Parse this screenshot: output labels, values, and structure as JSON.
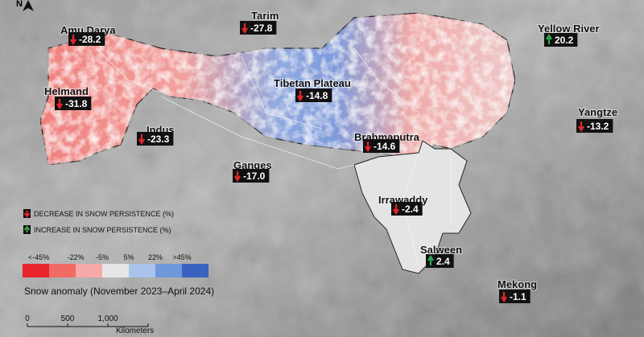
{
  "north": "N",
  "basins": [
    {
      "name": "Amu Darya",
      "value": "-28.2"
    },
    {
      "name": "Tarim",
      "value": "-27.8"
    },
    {
      "name": "Yellow River",
      "value": "20.2"
    },
    {
      "name": "Helmand",
      "value": "-31.8"
    },
    {
      "name": "Tibetan Plateau",
      "value": "-14.8"
    },
    {
      "name": "Indus",
      "value": "-23.3"
    },
    {
      "name": "Yangtze",
      "value": "-13.2"
    },
    {
      "name": "Brahmaputra",
      "value": "-14.6"
    },
    {
      "name": "Ganges",
      "value": "-17.0"
    },
    {
      "name": "Irrawaddy",
      "value": "-2.4"
    },
    {
      "name": "Salween",
      "value": "2.4"
    },
    {
      "name": "Mekong",
      "value": "-1.1"
    }
  ],
  "legend": {
    "decrease": "DECREASE IN SNOW PERSISTENCE (%)",
    "increase": "INCREASE IN SNOW PERSISTENCE (%)",
    "scale_labels": [
      "<-45%",
      "-22%",
      "-5%",
      "5%",
      "22%",
      ">45%"
    ],
    "scale_colors": [
      "#e8262c",
      "#f06a66",
      "#f6a9a6",
      "#e6e6e6",
      "#a9c3ea",
      "#6f98da",
      "#3a63c0"
    ],
    "caption": "Snow anomaly (November 2023–April 2024)"
  },
  "scale_bar": {
    "ticks": [
      "0",
      "500",
      "1,000"
    ],
    "unit": "Kilometers"
  }
}
